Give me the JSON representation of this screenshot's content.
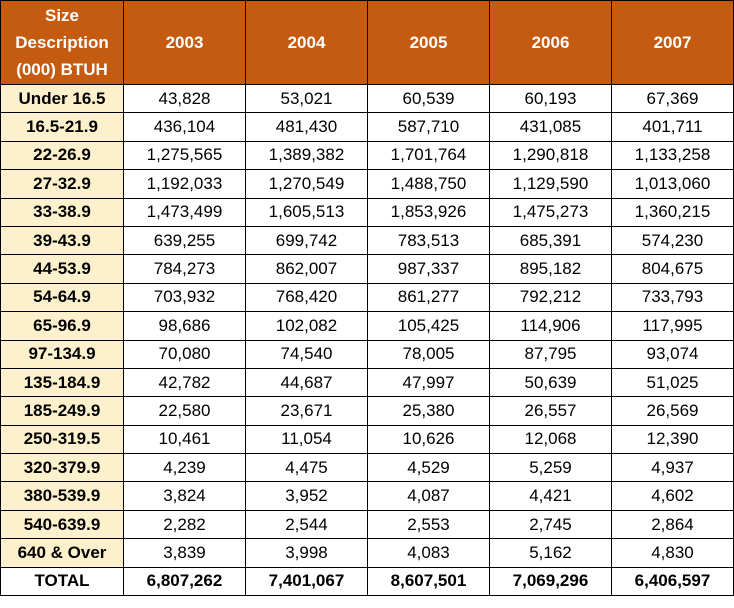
{
  "header": {
    "size_lines": [
      "Size",
      "Description",
      "(000) BTUH"
    ],
    "years": [
      "2003",
      "2004",
      "2005",
      "2006",
      "2007"
    ]
  },
  "rows": [
    {
      "label": "Under 16.5",
      "values": [
        "43,828",
        "53,021",
        "60,539",
        "60,193",
        "67,369"
      ]
    },
    {
      "label": "16.5-21.9",
      "values": [
        "436,104",
        "481,430",
        "587,710",
        "431,085",
        "401,711"
      ]
    },
    {
      "label": "22-26.9",
      "values": [
        "1,275,565",
        "1,389,382",
        "1,701,764",
        "1,290,818",
        "1,133,258"
      ]
    },
    {
      "label": "27-32.9",
      "values": [
        "1,192,033",
        "1,270,549",
        "1,488,750",
        "1,129,590",
        "1,013,060"
      ]
    },
    {
      "label": "33-38.9",
      "values": [
        "1,473,499",
        "1,605,513",
        "1,853,926",
        "1,475,273",
        "1,360,215"
      ]
    },
    {
      "label": "39-43.9",
      "values": [
        "639,255",
        "699,742",
        "783,513",
        "685,391",
        "574,230"
      ]
    },
    {
      "label": "44-53.9",
      "values": [
        "784,273",
        "862,007",
        "987,337",
        "895,182",
        "804,675"
      ]
    },
    {
      "label": "54-64.9",
      "values": [
        "703,932",
        "768,420",
        "861,277",
        "792,212",
        "733,793"
      ]
    },
    {
      "label": "65-96.9",
      "values": [
        "98,686",
        "102,082",
        "105,425",
        "114,906",
        "117,995"
      ]
    },
    {
      "label": "97-134.9",
      "values": [
        "70,080",
        "74,540",
        "78,005",
        "87,795",
        "93,074"
      ]
    },
    {
      "label": "135-184.9",
      "values": [
        "42,782",
        "44,687",
        "47,997",
        "50,639",
        "51,025"
      ]
    },
    {
      "label": "185-249.9",
      "values": [
        "22,580",
        "23,671",
        "25,380",
        "26,557",
        "26,569"
      ]
    },
    {
      "label": "250-319.5",
      "values": [
        "10,461",
        "11,054",
        "10,626",
        "12,068",
        "12,390"
      ]
    },
    {
      "label": "320-379.9",
      "values": [
        "4,239",
        "4,475",
        "4,529",
        "5,259",
        "4,937"
      ]
    },
    {
      "label": "380-539.9",
      "values": [
        "3,824",
        "3,952",
        "4,087",
        "4,421",
        "4,602"
      ]
    },
    {
      "label": "540-639.9",
      "values": [
        "2,282",
        "2,544",
        "2,553",
        "2,745",
        "2,864"
      ]
    },
    {
      "label": "640 & Over",
      "values": [
        "3,839",
        "3,998",
        "4,083",
        "5,162",
        "4,830"
      ]
    }
  ],
  "total": {
    "label": "TOTAL",
    "values": [
      "6,807,262",
      "7,401,067",
      "8,607,501",
      "7,069,296",
      "6,406,597"
    ]
  },
  "colors": {
    "header_bg": "#c55a11",
    "header_text": "#ffffff",
    "label_bg": "#fdf1cd",
    "border": "#000000"
  }
}
